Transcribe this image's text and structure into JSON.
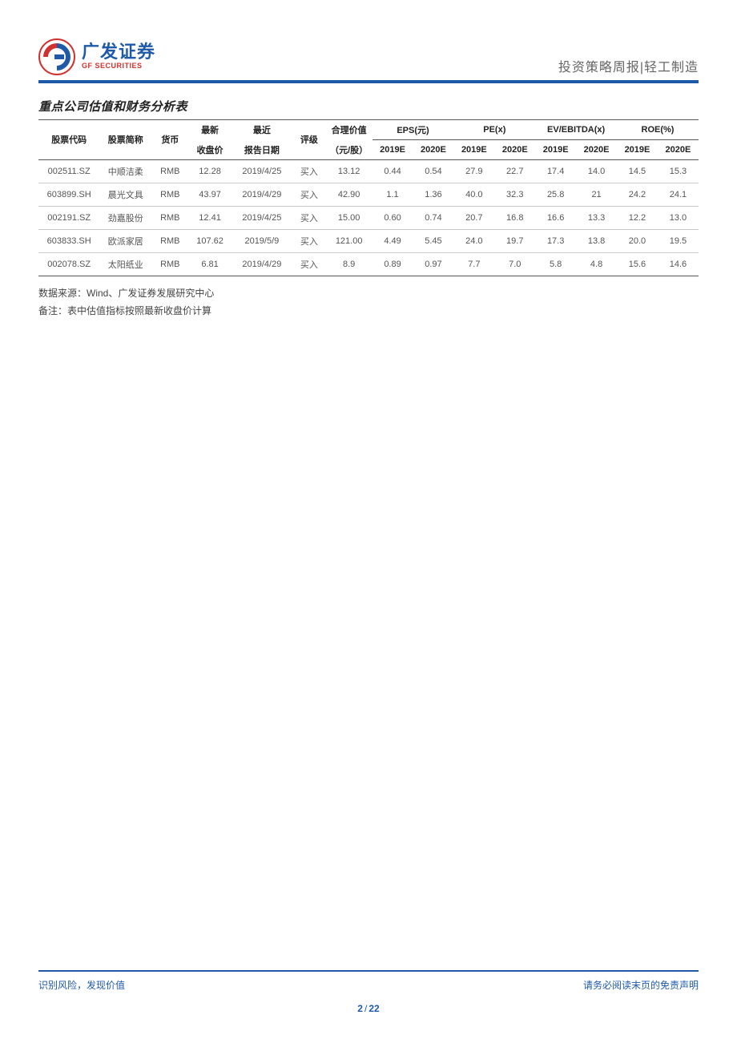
{
  "header": {
    "logo_cn": "广发证券",
    "logo_en": "GF SECURITIES",
    "right_text": "投资策略周报|轻工制造"
  },
  "section_title": "重点公司估值和财务分析表",
  "table": {
    "columns": {
      "code": "股票代码",
      "name": "股票简称",
      "ccy": "货币",
      "price_top": "最新",
      "price_bot": "收盘价",
      "date_top": "最近",
      "date_bot": "报告日期",
      "rating": "评级",
      "fair_top": "合理价值",
      "fair_bot": "（元/股）",
      "eps_label": "EPS(元)",
      "pe_label": "PE(x)",
      "ev_label": "EV/EBITDA(x)",
      "roe_label": "ROE(%)",
      "y19": "2019E",
      "y20": "2020E"
    },
    "rows": [
      {
        "code": "002511.SZ",
        "name": "中顺洁柔",
        "ccy": "RMB",
        "price": "12.28",
        "date": "2019/4/25",
        "rating": "买入",
        "fair": "13.12",
        "eps19": "0.44",
        "eps20": "0.54",
        "pe19": "27.9",
        "pe20": "22.7",
        "ev19": "17.4",
        "ev20": "14.0",
        "roe19": "14.5",
        "roe20": "15.3"
      },
      {
        "code": "603899.SH",
        "name": "晨光文具",
        "ccy": "RMB",
        "price": "43.97",
        "date": "2019/4/29",
        "rating": "买入",
        "fair": "42.90",
        "eps19": "1.1",
        "eps20": "1.36",
        "pe19": "40.0",
        "pe20": "32.3",
        "ev19": "25.8",
        "ev20": "21",
        "roe19": "24.2",
        "roe20": "24.1"
      },
      {
        "code": "002191.SZ",
        "name": "劲嘉股份",
        "ccy": "RMB",
        "price": "12.41",
        "date": "2019/4/25",
        "rating": "买入",
        "fair": "15.00",
        "eps19": "0.60",
        "eps20": "0.74",
        "pe19": "20.7",
        "pe20": "16.8",
        "ev19": "16.6",
        "ev20": "13.3",
        "roe19": "12.2",
        "roe20": "13.0"
      },
      {
        "code": "603833.SH",
        "name": "欧派家居",
        "ccy": "RMB",
        "price": "107.62",
        "date": "2019/5/9",
        "rating": "买入",
        "fair": "121.00",
        "eps19": "4.49",
        "eps20": "5.45",
        "pe19": "24.0",
        "pe20": "19.7",
        "ev19": "17.3",
        "ev20": "13.8",
        "roe19": "20.0",
        "roe20": "19.5"
      },
      {
        "code": "002078.SZ",
        "name": "太阳纸业",
        "ccy": "RMB",
        "price": "6.81",
        "date": "2019/4/29",
        "rating": "买入",
        "fair": "8.9",
        "eps19": "0.89",
        "eps20": "0.97",
        "pe19": "7.7",
        "pe20": "7.0",
        "ev19": "5.8",
        "ev20": "4.8",
        "roe19": "15.6",
        "roe20": "14.6"
      }
    ]
  },
  "notes": {
    "source": "数据来源：Wind、广发证券发展研究中心",
    "remark": "备注：表中估值指标按照最新收盘价计算"
  },
  "footer": {
    "left": "识别风险，发现价值",
    "right": "请务必阅读末页的免责声明",
    "page_cur": "2",
    "page_total": "22"
  },
  "colors": {
    "brand_blue": "#1f5aa8",
    "brand_red": "#d2322d",
    "text": "#333333",
    "border": "#555555"
  }
}
